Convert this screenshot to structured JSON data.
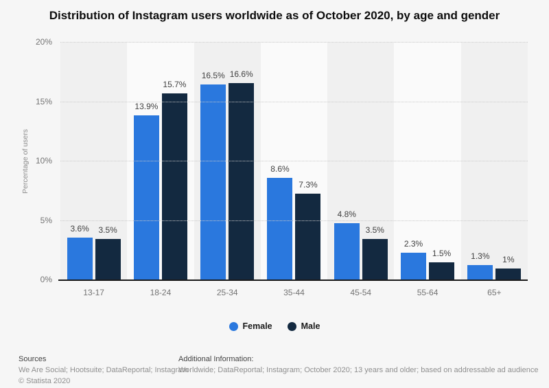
{
  "title": "Distribution of Instagram users worldwide as of October 2020, by age and gender",
  "chart_data": {
    "type": "bar",
    "categories": [
      "13-17",
      "18-24",
      "25-34",
      "35-44",
      "45-54",
      "55-64",
      "65+"
    ],
    "series": [
      {
        "name": "Female",
        "color": "#2a78de",
        "values": [
          3.6,
          13.9,
          16.5,
          8.6,
          4.8,
          2.3,
          1.3
        ],
        "labels": [
          "3.6%",
          "13.9%",
          "16.5%",
          "8.6%",
          "4.8%",
          "2.3%",
          "1.3%"
        ]
      },
      {
        "name": "Male",
        "color": "#132940",
        "values": [
          3.5,
          15.7,
          16.6,
          7.3,
          3.5,
          1.5,
          1.0
        ],
        "labels": [
          "3.5%",
          "15.7%",
          "16.6%",
          "7.3%",
          "3.5%",
          "1.5%",
          "1%"
        ]
      }
    ],
    "title": "Distribution of Instagram users worldwide as of October 2020, by age and gender",
    "xlabel": "",
    "ylabel": "Percentage of users",
    "yticks": [
      0,
      5,
      10,
      15,
      20
    ],
    "ytick_labels": [
      "0%",
      "5%",
      "10%",
      "15%",
      "20%"
    ],
    "ylim": [
      0,
      20
    ],
    "grid": "horizontal-dotted",
    "legend_position": "bottom-center",
    "band_color_odd": "#f0f0f0",
    "band_color_even": "#fafafa"
  },
  "legend": {
    "female_label": "Female",
    "male_label": "Male"
  },
  "footer": {
    "sources_label": "Sources",
    "sources_text": "We Are Social; Hootsuite; DataReportal; Instagram",
    "copyright": "© Statista 2020",
    "additional_label": "Additional Information:",
    "additional_text": "Worldwide; DataReportal; Instagram; October 2020; 13 years and older; based on addressable ad audience"
  }
}
